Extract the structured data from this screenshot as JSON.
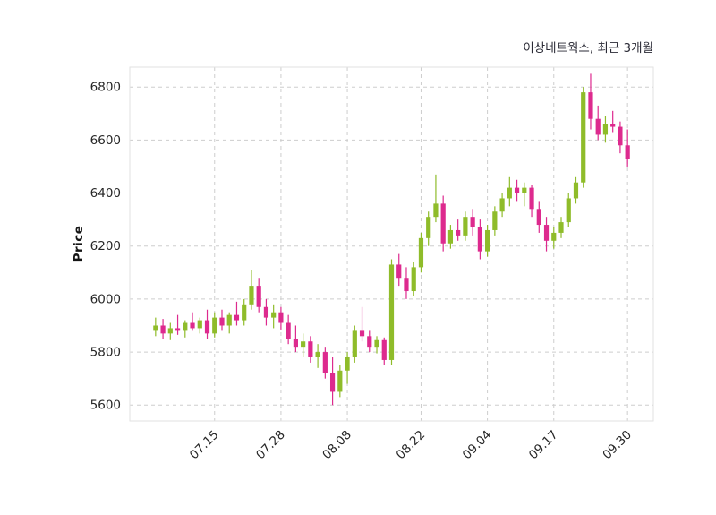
{
  "chart": {
    "title": "이상네트웍스, 최근 3개월",
    "y_axis_label": "Price"
  },
  "chart_data": {
    "type": "candlestick",
    "title": "이상네트웍스, 최근 3개월",
    "ylabel": "Price",
    "xlabel": "",
    "ylim": [
      5540,
      6875
    ],
    "y_ticks": [
      5600,
      5800,
      6000,
      6200,
      6400,
      6600,
      6800
    ],
    "x_ticks": [
      {
        "label": "07.15",
        "index": 8
      },
      {
        "label": "07.28",
        "index": 17
      },
      {
        "label": "08.08",
        "index": 26
      },
      {
        "label": "08.22",
        "index": 36
      },
      {
        "label": "09.04",
        "index": 45
      },
      {
        "label": "09.17",
        "index": 54
      },
      {
        "label": "09.30",
        "index": 64
      }
    ],
    "grid": "dashed",
    "legend": "none",
    "colors": {
      "up": "#8fbc2a",
      "down": "#dd2a8e",
      "grid": "#cdcdcd",
      "tick_text": "#262626",
      "title_text": "#2a2a35",
      "plot_border": "#e2e2e2",
      "plot_background": "#ffffff",
      "figure_background": "#ffffff"
    },
    "candles_format": [
      "open",
      "high",
      "low",
      "close"
    ],
    "candles": [
      [
        5880,
        5930,
        5860,
        5900
      ],
      [
        5900,
        5925,
        5850,
        5870
      ],
      [
        5870,
        5910,
        5845,
        5890
      ],
      [
        5890,
        5940,
        5865,
        5880
      ],
      [
        5880,
        5920,
        5855,
        5910
      ],
      [
        5910,
        5950,
        5880,
        5890
      ],
      [
        5890,
        5930,
        5870,
        5920
      ],
      [
        5920,
        5960,
        5850,
        5870
      ],
      [
        5870,
        5950,
        5855,
        5930
      ],
      [
        5930,
        5960,
        5880,
        5900
      ],
      [
        5900,
        5950,
        5870,
        5940
      ],
      [
        5940,
        5990,
        5900,
        5920
      ],
      [
        5920,
        6000,
        5900,
        5980
      ],
      [
        5980,
        6110,
        5960,
        6050
      ],
      [
        6050,
        6080,
        5950,
        5970
      ],
      [
        5970,
        6000,
        5900,
        5930
      ],
      [
        5930,
        5980,
        5890,
        5950
      ],
      [
        5950,
        5970,
        5885,
        5910
      ],
      [
        5910,
        5940,
        5830,
        5850
      ],
      [
        5850,
        5900,
        5800,
        5820
      ],
      [
        5820,
        5870,
        5780,
        5840
      ],
      [
        5840,
        5860,
        5760,
        5780
      ],
      [
        5780,
        5830,
        5740,
        5800
      ],
      [
        5800,
        5820,
        5700,
        5720
      ],
      [
        5720,
        5780,
        5600,
        5650
      ],
      [
        5650,
        5750,
        5630,
        5730
      ],
      [
        5730,
        5800,
        5680,
        5780
      ],
      [
        5780,
        5900,
        5760,
        5880
      ],
      [
        5880,
        5970,
        5840,
        5860
      ],
      [
        5860,
        5880,
        5800,
        5820
      ],
      [
        5820,
        5860,
        5795,
        5845
      ],
      [
        5845,
        5855,
        5750,
        5770
      ],
      [
        5770,
        6150,
        5750,
        6130
      ],
      [
        6130,
        6170,
        6050,
        6080
      ],
      [
        6080,
        6120,
        6000,
        6030
      ],
      [
        6030,
        6140,
        6010,
        6120
      ],
      [
        6120,
        6250,
        6100,
        6230
      ],
      [
        6230,
        6330,
        6200,
        6310
      ],
      [
        6310,
        6470,
        6290,
        6360
      ],
      [
        6360,
        6390,
        6180,
        6210
      ],
      [
        6210,
        6280,
        6190,
        6260
      ],
      [
        6260,
        6300,
        6220,
        6240
      ],
      [
        6240,
        6330,
        6220,
        6310
      ],
      [
        6310,
        6340,
        6240,
        6270
      ],
      [
        6270,
        6300,
        6150,
        6180
      ],
      [
        6180,
        6280,
        6160,
        6260
      ],
      [
        6260,
        6350,
        6240,
        6330
      ],
      [
        6330,
        6400,
        6310,
        6380
      ],
      [
        6380,
        6460,
        6350,
        6420
      ],
      [
        6420,
        6450,
        6370,
        6400
      ],
      [
        6400,
        6440,
        6350,
        6420
      ],
      [
        6420,
        6430,
        6310,
        6340
      ],
      [
        6340,
        6370,
        6250,
        6280
      ],
      [
        6280,
        6310,
        6180,
        6220
      ],
      [
        6220,
        6270,
        6190,
        6250
      ],
      [
        6250,
        6310,
        6230,
        6290
      ],
      [
        6290,
        6400,
        6270,
        6380
      ],
      [
        6380,
        6460,
        6360,
        6440
      ],
      [
        6440,
        6800,
        6420,
        6780
      ],
      [
        6780,
        6850,
        6640,
        6680
      ],
      [
        6680,
        6730,
        6600,
        6620
      ],
      [
        6620,
        6690,
        6590,
        6660
      ],
      [
        6660,
        6710,
        6630,
        6650
      ],
      [
        6650,
        6670,
        6550,
        6580
      ],
      [
        6580,
        6640,
        6500,
        6530
      ]
    ]
  }
}
